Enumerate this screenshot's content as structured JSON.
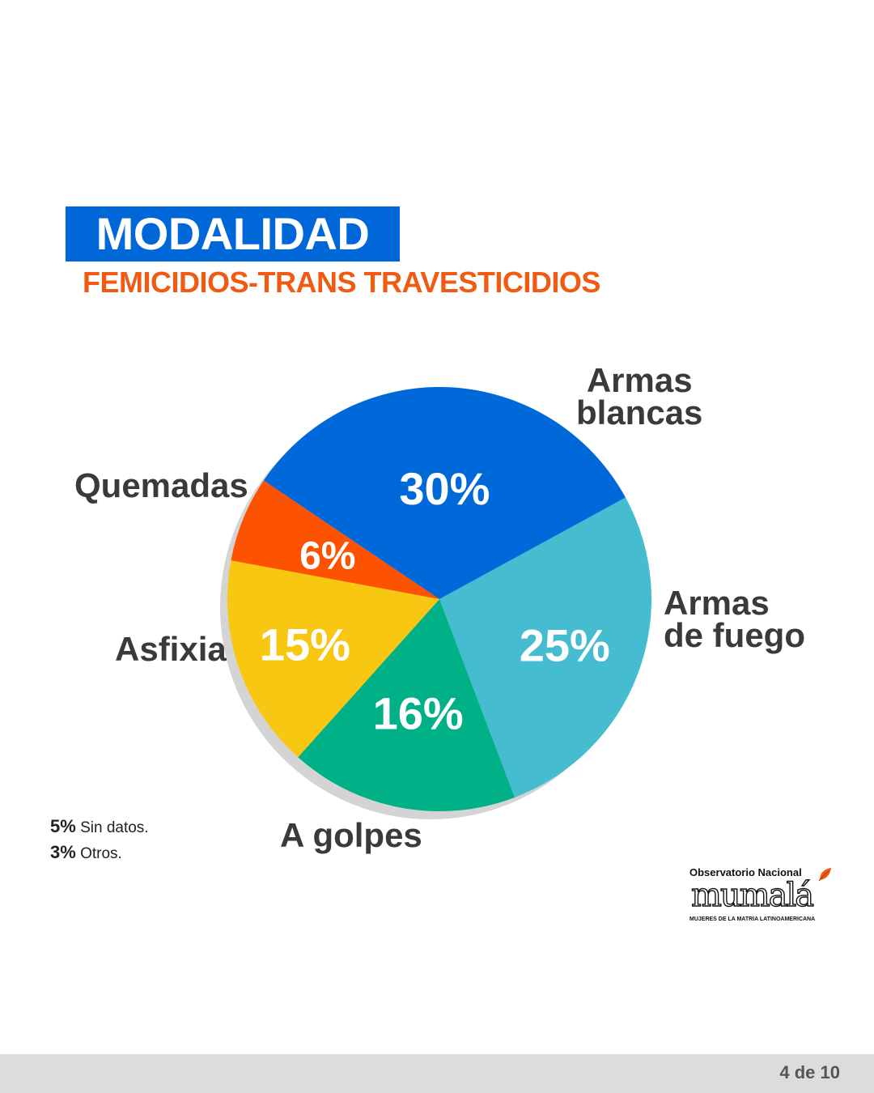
{
  "header": {
    "title": "MODALIDAD",
    "subtitle": "FEMICIDIOS-TRANS TRAVESTICIDIOS"
  },
  "chart_data": {
    "type": "pie",
    "slices": [
      {
        "label": [
          "Armas",
          "blancas"
        ],
        "value": 30,
        "value_label": "30%",
        "color": "#0069d9"
      },
      {
        "label": [
          "Armas",
          "de fuego"
        ],
        "value": 25,
        "value_label": "25%",
        "color": "#45bccf"
      },
      {
        "label": [
          "A golpes"
        ],
        "value": 16,
        "value_label": "16%",
        "color": "#00b187"
      },
      {
        "label": [
          "Asfixia"
        ],
        "value": 15,
        "value_label": "15%",
        "color": "#f7c712"
      },
      {
        "label": [
          "Quemadas"
        ],
        "value": 6,
        "value_label": "6%",
        "color": "#fd5200"
      }
    ]
  },
  "notes": [
    {
      "value": "5%",
      "text": "Sin datos."
    },
    {
      "value": "3%",
      "text": "Otros."
    }
  ],
  "logo": {
    "top_text": "Observatorio Nacional",
    "word": "mumalá",
    "bottom_text": "MUJERES DE LA MATRIA LATINOAMERICANA"
  },
  "footer": {
    "page": "4 de 10"
  }
}
